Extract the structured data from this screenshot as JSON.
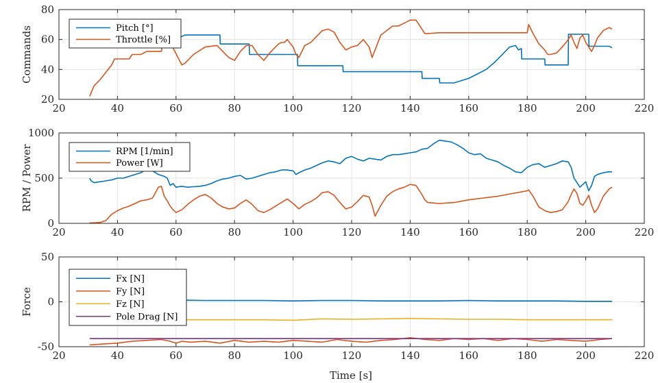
{
  "figure": {
    "xlabel": "Time [s]"
  },
  "chart_data": [
    {
      "type": "line",
      "ylabel": "Commands",
      "xlim": [
        20,
        220
      ],
      "ylim": [
        20,
        80
      ],
      "xticks": [
        20,
        40,
        60,
        80,
        100,
        120,
        140,
        160,
        180,
        200,
        220
      ],
      "yticks": [
        20,
        40,
        60,
        80
      ],
      "grid": true,
      "legend_position": "top-left",
      "series": [
        {
          "name": "Pitch [°]",
          "color": "#0072BD",
          "x": [
            30.5,
            30.6,
            40,
            50,
            53,
            55,
            58,
            60,
            62,
            63,
            75,
            75.1,
            85,
            85.1,
            101.5,
            101.6,
            117,
            117.1,
            144,
            144.1,
            150,
            150.1,
            155,
            160,
            163,
            166,
            169,
            172,
            174,
            176,
            177,
            178,
            178.1,
            186,
            186.1,
            194,
            194.1,
            201,
            201.1,
            208,
            209
          ],
          "y": [
            58,
            62,
            60,
            59,
            62,
            59,
            61,
            60,
            62,
            63,
            63,
            57,
            57,
            50,
            50,
            42.5,
            42.5,
            38.5,
            38.5,
            34,
            34,
            31,
            31,
            34,
            37,
            40,
            45,
            51,
            55,
            56,
            53,
            54,
            47,
            47,
            43,
            43,
            63.5,
            63.5,
            55.5,
            55.5,
            54.5
          ]
        },
        {
          "name": "Throttle [%]",
          "color": "#D95319",
          "x": [
            30.5,
            32,
            34,
            36,
            38,
            39,
            40,
            44,
            45,
            48,
            50,
            55,
            56,
            58,
            62,
            63,
            66,
            70,
            74,
            76,
            78,
            80,
            82,
            84,
            86,
            88,
            90,
            92,
            94,
            95,
            96,
            97,
            98,
            100,
            101,
            102,
            104,
            106,
            108,
            110,
            112,
            114,
            116,
            118,
            120,
            122,
            124,
            126,
            127,
            128,
            130,
            132,
            134,
            136,
            138,
            140,
            142,
            143,
            145,
            146,
            150,
            160,
            170,
            180,
            180.5,
            182,
            184,
            186,
            187,
            188,
            190,
            192,
            194,
            195,
            196,
            197,
            198,
            199,
            200,
            201,
            202,
            203,
            204,
            206,
            208,
            209
          ],
          "y": [
            22,
            29,
            33,
            38,
            43,
            47,
            47,
            47,
            50,
            50,
            52,
            52,
            63,
            58,
            43,
            44,
            50,
            55,
            56,
            52,
            48,
            46,
            52,
            56,
            56,
            50,
            46,
            51,
            55,
            57,
            58,
            58,
            60,
            55,
            50,
            48,
            56,
            58,
            62,
            66,
            67,
            65,
            58,
            53,
            55,
            56,
            60,
            55,
            48,
            53,
            63,
            66,
            69,
            69,
            71,
            73,
            73,
            70,
            64,
            64,
            64.5,
            64.5,
            64.5,
            64.5,
            70,
            64,
            57,
            53,
            50,
            50,
            51,
            55,
            60,
            63,
            58,
            54,
            61,
            63,
            58,
            55,
            52,
            56,
            61,
            66,
            68,
            67
          ]
        }
      ]
    },
    {
      "type": "line",
      "ylabel": "RPM / Power",
      "xlim": [
        20,
        220
      ],
      "ylim": [
        0,
        1000
      ],
      "xticks": [
        20,
        40,
        60,
        80,
        100,
        120,
        140,
        160,
        180,
        200,
        220
      ],
      "yticks": [
        0,
        500,
        1000
      ],
      "grid": true,
      "legend_position": "top-left",
      "series": [
        {
          "name": "RPM [1/min]",
          "color": "#0072BD",
          "x": [
            30.5,
            31,
            32,
            34,
            36,
            38,
            40,
            42,
            44,
            46,
            48,
            50,
            52,
            54,
            56,
            57,
            58,
            59,
            60,
            62,
            64,
            66,
            68,
            70,
            72,
            74,
            76,
            78,
            80,
            82,
            84,
            86,
            88,
            90,
            92,
            94,
            96,
            98,
            100,
            101,
            102,
            104,
            106,
            108,
            110,
            112,
            114,
            116,
            118,
            120,
            122,
            124,
            126,
            128,
            130,
            132,
            134,
            136,
            138,
            140,
            142,
            144,
            146,
            148,
            150,
            152,
            154,
            156,
            158,
            160,
            162,
            164,
            166,
            168,
            170,
            172,
            174,
            176,
            178,
            180,
            182,
            184,
            186,
            188,
            190,
            192,
            194,
            195,
            196,
            197,
            198,
            200,
            201,
            202,
            203,
            204,
            206,
            208,
            209
          ],
          "y": [
            500,
            470,
            450,
            460,
            470,
            480,
            500,
            500,
            520,
            540,
            560,
            600,
            580,
            540,
            520,
            500,
            420,
            440,
            400,
            410,
            400,
            405,
            410,
            420,
            440,
            470,
            490,
            500,
            520,
            530,
            490,
            500,
            520,
            540,
            560,
            570,
            590,
            590,
            580,
            540,
            560,
            590,
            610,
            640,
            670,
            690,
            680,
            660,
            720,
            740,
            710,
            690,
            720,
            710,
            700,
            740,
            760,
            760,
            770,
            780,
            790,
            820,
            830,
            880,
            920,
            910,
            900,
            870,
            830,
            780,
            760,
            770,
            720,
            700,
            680,
            640,
            610,
            570,
            560,
            620,
            650,
            660,
            620,
            640,
            660,
            690,
            680,
            620,
            500,
            450,
            400,
            460,
            360,
            420,
            520,
            540,
            560,
            570,
            570
          ]
        },
        {
          "name": "Power [W]",
          "color": "#D95319",
          "x": [
            30.5,
            32,
            34,
            36,
            38,
            40,
            42,
            44,
            46,
            48,
            50,
            52,
            54,
            55,
            56,
            57,
            58,
            59,
            60,
            62,
            64,
            66,
            68,
            70,
            72,
            74,
            76,
            78,
            80,
            82,
            84,
            86,
            88,
            90,
            92,
            94,
            96,
            98,
            100,
            101,
            102,
            104,
            106,
            108,
            110,
            112,
            114,
            116,
            118,
            120,
            122,
            124,
            126,
            127,
            128,
            130,
            132,
            134,
            136,
            138,
            140,
            142,
            144,
            145,
            146,
            150,
            155,
            160,
            165,
            170,
            175,
            180,
            180.5,
            182,
            184,
            186,
            188,
            190,
            192,
            194,
            195,
            196,
            197,
            198,
            199,
            200,
            201,
            202,
            203,
            204,
            206,
            208,
            209
          ],
          "y": [
            5,
            5,
            10,
            30,
            100,
            140,
            170,
            190,
            220,
            250,
            260,
            280,
            400,
            410,
            300,
            250,
            190,
            150,
            120,
            150,
            210,
            260,
            300,
            320,
            280,
            220,
            180,
            160,
            170,
            220,
            260,
            210,
            140,
            120,
            150,
            190,
            230,
            270,
            220,
            190,
            160,
            210,
            240,
            280,
            340,
            350,
            310,
            230,
            160,
            180,
            240,
            310,
            290,
            200,
            80,
            200,
            300,
            350,
            380,
            400,
            430,
            420,
            320,
            260,
            230,
            220,
            230,
            260,
            280,
            300,
            330,
            360,
            370,
            300,
            180,
            140,
            120,
            130,
            150,
            240,
            320,
            380,
            330,
            220,
            200,
            250,
            310,
            200,
            120,
            160,
            300,
            380,
            400
          ]
        }
      ]
    },
    {
      "type": "line",
      "ylabel": "Force",
      "xlim": [
        20,
        220
      ],
      "ylim": [
        -50,
        50
      ],
      "xticks": [
        20,
        40,
        60,
        80,
        100,
        120,
        140,
        160,
        180,
        200,
        220
      ],
      "yticks": [
        -50,
        0,
        50
      ],
      "grid": true,
      "legend_position": "top-left",
      "series": [
        {
          "name": "Fx [N]",
          "color": "#0072BD",
          "x": [
            30.5,
            40,
            50,
            60,
            70,
            80,
            90,
            100,
            110,
            120,
            130,
            140,
            150,
            160,
            170,
            180,
            190,
            200,
            209
          ],
          "y": [
            1,
            1.5,
            2,
            2,
            1.5,
            1.5,
            1.5,
            1,
            1.5,
            1.5,
            1,
            1,
            1,
            1.5,
            1,
            1,
            1,
            0.5,
            0.5
          ]
        },
        {
          "name": "Fy [N]",
          "color": "#D95319",
          "x": [
            30.5,
            35,
            40,
            45,
            50,
            55,
            58,
            60,
            62,
            65,
            70,
            75,
            80,
            85,
            90,
            95,
            100,
            105,
            110,
            115,
            120,
            125,
            130,
            135,
            140,
            145,
            150,
            155,
            160,
            165,
            170,
            175,
            180,
            185,
            190,
            195,
            200,
            205,
            209
          ],
          "y": [
            -48,
            -47,
            -46,
            -44,
            -43,
            -42,
            -44,
            -46,
            -44,
            -45,
            -44,
            -46,
            -43,
            -45,
            -44,
            -45,
            -43,
            -44,
            -45,
            -42,
            -44,
            -45,
            -43,
            -42,
            -40,
            -42,
            -43,
            -41,
            -42,
            -41,
            -43,
            -41,
            -42,
            -44,
            -42,
            -43,
            -44,
            -42,
            -41
          ]
        },
        {
          "name": "Fz [N]",
          "color": "#EDB120",
          "x": [
            63,
            70,
            80,
            90,
            100,
            110,
            120,
            130,
            140,
            150,
            160,
            170,
            180,
            190,
            200,
            209
          ],
          "y": [
            -20,
            -20,
            -20,
            -20,
            -20.5,
            -19,
            -19.5,
            -19,
            -18.5,
            -19,
            -19.5,
            -19.5,
            -20,
            -20,
            -20,
            -20
          ]
        },
        {
          "name": "Pole Drag [N]",
          "color": "#7E2F8E",
          "x": [
            30.5,
            209
          ],
          "y": [
            -41,
            -41
          ]
        }
      ]
    }
  ]
}
